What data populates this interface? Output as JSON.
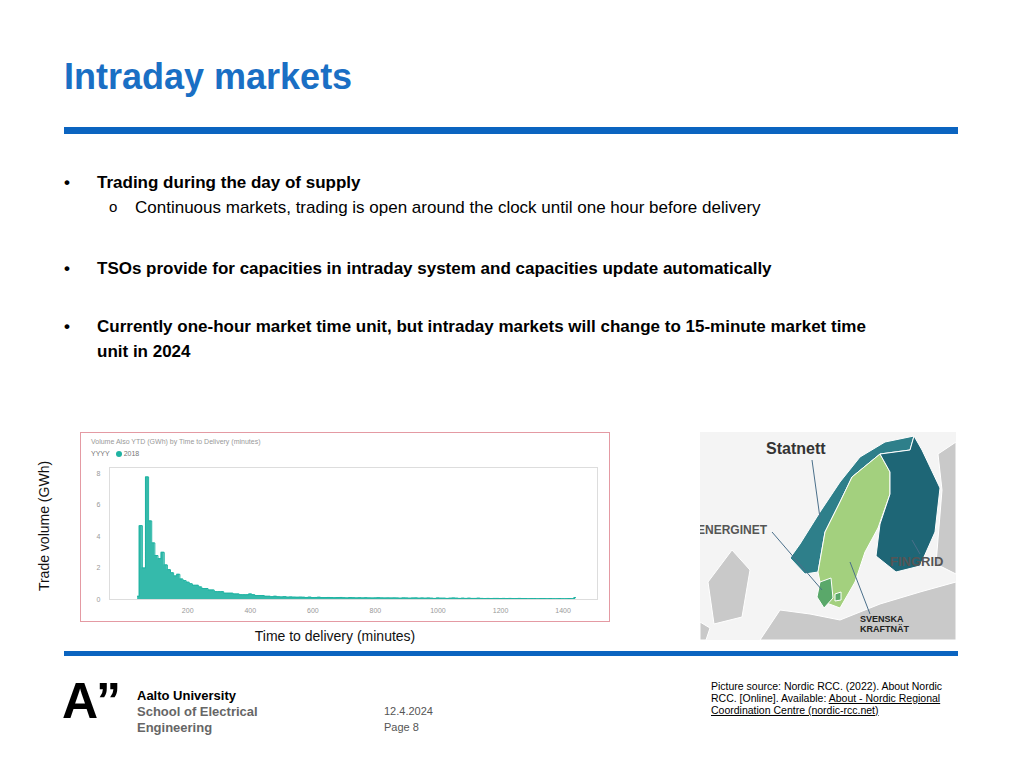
{
  "title": "Intraday markets",
  "bullets": [
    {
      "text": "Trading during the day of supply",
      "sub": [
        "Continuous markets, trading is open around the clock until one hour before delivery"
      ]
    },
    {
      "text": "TSOs provide for capacities in intraday system and capacities update automatically",
      "sub": []
    },
    {
      "text": "Currently one-hour market time unit, but intraday markets will change to 15-minute market time unit in 2024",
      "sub": []
    }
  ],
  "bullet_mark": "•",
  "sub_bullet_mark": "o",
  "chart_data": {
    "type": "area",
    "title": "Volume Also YTD (GWh) by Time to Delivery (minutes)",
    "x_label": "Time to delivery (minutes)",
    "y_label": "Trade volume (GWh)",
    "legend_title": "YYYY",
    "legend": "top-left",
    "grid": false,
    "xlim": [
      -50,
      1510
    ],
    "ylim": [
      0,
      8.4
    ],
    "xticks": [
      200,
      400,
      600,
      800,
      1000,
      1200,
      1400
    ],
    "yticks": [
      0,
      2,
      4,
      6,
      8
    ],
    "x": [
      40,
      50,
      60,
      70,
      80,
      90,
      100,
      110,
      120,
      130,
      140,
      150,
      160,
      170,
      180,
      190,
      200,
      210,
      220,
      230,
      240,
      250,
      260,
      270,
      280,
      290,
      300,
      310,
      320,
      330,
      340,
      350,
      360,
      370,
      380,
      390,
      400,
      410,
      420,
      430,
      440,
      450,
      460,
      470,
      480,
      490,
      500,
      510,
      520,
      530,
      540,
      550,
      560,
      570,
      580,
      590,
      600,
      610,
      620,
      630,
      640,
      650,
      660,
      670,
      680,
      690,
      700,
      710,
      720,
      730,
      740,
      750,
      760,
      770,
      780,
      790,
      800,
      810,
      820,
      830,
      840,
      850,
      860,
      870,
      880,
      890,
      900,
      910,
      920,
      930,
      940,
      950,
      960,
      970,
      980,
      990,
      1000,
      1010,
      1020,
      1030,
      1040,
      1050,
      1060,
      1070,
      1080,
      1090,
      1100,
      1110,
      1120,
      1130,
      1140,
      1150,
      1160,
      1170,
      1180,
      1190,
      1200,
      1210,
      1220,
      1230,
      1240,
      1250,
      1260,
      1270,
      1280,
      1290,
      1300,
      1310,
      1320,
      1330,
      1340,
      1350,
      1360,
      1370,
      1380,
      1390,
      1400,
      1410,
      1420,
      1430,
      1440
    ],
    "series": [
      {
        "name": "2018",
        "color": "#1fb3a2",
        "values": [
          0.2,
          4.7,
          2.0,
          7.8,
          5.0,
          3.6,
          2.8,
          2.6,
          3.0,
          2.2,
          1.9,
          1.7,
          1.5,
          1.6,
          1.3,
          1.2,
          1.1,
          1.0,
          0.9,
          0.9,
          0.8,
          0.7,
          0.7,
          0.6,
          0.6,
          0.5,
          0.5,
          0.5,
          0.4,
          0.4,
          0.4,
          0.35,
          0.35,
          0.3,
          0.3,
          0.3,
          0.35,
          0.3,
          0.25,
          0.25,
          0.25,
          0.2,
          0.2,
          0.18,
          0.2,
          0.17,
          0.16,
          0.18,
          0.15,
          0.16,
          0.15,
          0.14,
          0.15,
          0.14,
          0.13,
          0.15,
          0.12,
          0.13,
          0.14,
          0.12,
          0.12,
          0.13,
          0.12,
          0.11,
          0.12,
          0.13,
          0.11,
          0.1,
          0.12,
          0.11,
          0.1,
          0.11,
          0.1,
          0.11,
          0.1,
          0.09,
          0.1,
          0.11,
          0.1,
          0.09,
          0.1,
          0.09,
          0.1,
          0.09,
          0.08,
          0.1,
          0.09,
          0.08,
          0.09,
          0.1,
          0.08,
          0.09,
          0.08,
          0.09,
          0.08,
          0.07,
          0.09,
          0.08,
          0.08,
          0.07,
          0.08,
          0.09,
          0.08,
          0.07,
          0.08,
          0.07,
          0.08,
          0.07,
          0.07,
          0.08,
          0.07,
          0.06,
          0.07,
          0.06,
          0.07,
          0.07,
          0.06,
          0.07,
          0.06,
          0.07,
          0.06,
          0.06,
          0.07,
          0.06,
          0.06,
          0.05,
          0.06,
          0.06,
          0.05,
          0.06,
          0.06,
          0.05,
          0.06,
          0.05,
          0.05,
          0.06,
          0.05,
          0.05,
          0.06,
          0.05,
          0.12
        ]
      }
    ]
  },
  "map": {
    "labels": {
      "norway": "Statnett",
      "denmark": "ENERGINET",
      "finland": "FINGRID",
      "sweden": [
        "SVENSKA",
        "KRAFTNÄT"
      ]
    }
  },
  "footer": {
    "logo": "A”",
    "organisation": [
      "Aalto University",
      "School of Electrical",
      "Engineering"
    ],
    "date": "12.4.2024",
    "page": "Page 8",
    "source": "Picture source: Nordic RCC. (2022). About Nordic RCC. [Online]. Available: ",
    "source_link": "About - Nordic Regional Coordination Centre (nordic-rcc.net)"
  }
}
